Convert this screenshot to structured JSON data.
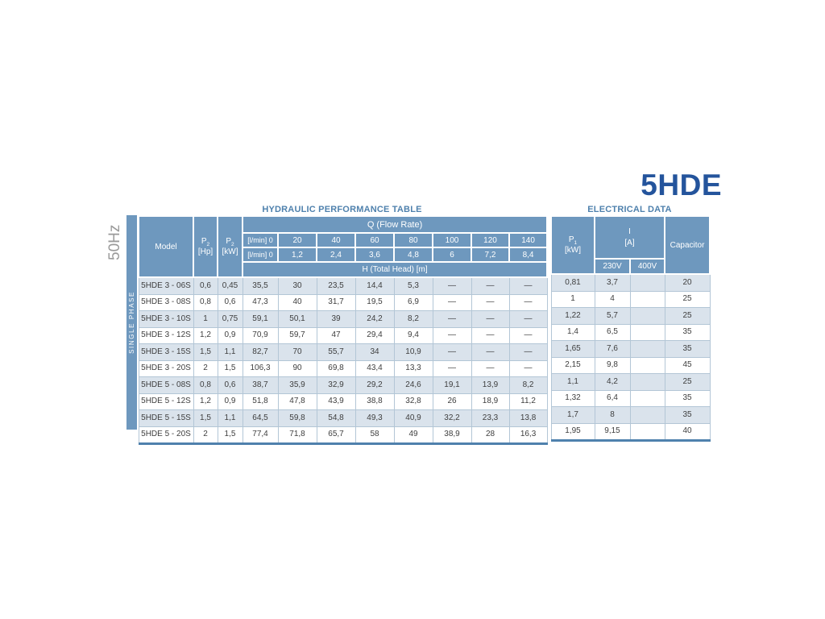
{
  "brand": "5HDE",
  "side": {
    "frequency": "50Hz",
    "phase": "SINGLE PHASE"
  },
  "hydraulic_table": {
    "title": "HYDRAULIC PERFORMANCE TABLE",
    "columns": {
      "model": "Model",
      "p2_hp": {
        "symbol": "P",
        "sub": "2",
        "unit": "[Hp]"
      },
      "p2_kw": {
        "symbol": "P",
        "sub": "2",
        "unit": "[kW]"
      },
      "q_header": "Q (Flow Rate)",
      "flow_lmin": [
        "[l/min] 0",
        "20",
        "40",
        "60",
        "80",
        "100",
        "120",
        "140"
      ],
      "flow_m3h": [
        "[l/min] 0",
        "1,2",
        "2,4",
        "3,6",
        "4,8",
        "6",
        "7,2",
        "8,4"
      ],
      "h_header": "H (Total Head) [m]"
    },
    "rows": [
      {
        "model": "5HDE 3 - 06S",
        "p2_hp": "0,6",
        "p2_kw": "0,45",
        "heads": [
          "35,5",
          "30",
          "23,5",
          "14,4",
          "5,3",
          "—",
          "—",
          "—"
        ]
      },
      {
        "model": "5HDE 3 - 08S",
        "p2_hp": "0,8",
        "p2_kw": "0,6",
        "heads": [
          "47,3",
          "40",
          "31,7",
          "19,5",
          "6,9",
          "—",
          "—",
          "—"
        ]
      },
      {
        "model": "5HDE 3 - 10S",
        "p2_hp": "1",
        "p2_kw": "0,75",
        "heads": [
          "59,1",
          "50,1",
          "39",
          "24,2",
          "8,2",
          "—",
          "—",
          "—"
        ]
      },
      {
        "model": "5HDE 3 - 12S",
        "p2_hp": "1,2",
        "p2_kw": "0,9",
        "heads": [
          "70,9",
          "59,7",
          "47",
          "29,4",
          "9,4",
          "—",
          "—",
          "—"
        ]
      },
      {
        "model": "5HDE 3 - 15S",
        "p2_hp": "1,5",
        "p2_kw": "1,1",
        "heads": [
          "82,7",
          "70",
          "55,7",
          "34",
          "10,9",
          "—",
          "—",
          "—"
        ]
      },
      {
        "model": "5HDE 3 - 20S",
        "p2_hp": "2",
        "p2_kw": "1,5",
        "heads": [
          "106,3",
          "90",
          "69,8",
          "43,4",
          "13,3",
          "—",
          "—",
          "—"
        ]
      },
      {
        "model": "5HDE 5 - 08S",
        "p2_hp": "0,8",
        "p2_kw": "0,6",
        "heads": [
          "38,7",
          "35,9",
          "32,9",
          "29,2",
          "24,6",
          "19,1",
          "13,9",
          "8,2"
        ]
      },
      {
        "model": "5HDE 5 - 12S",
        "p2_hp": "1,2",
        "p2_kw": "0,9",
        "heads": [
          "51,8",
          "47,8",
          "43,9",
          "38,8",
          "32,8",
          "26",
          "18,9",
          "11,2"
        ]
      },
      {
        "model": "5HDE 5 - 15S",
        "p2_hp": "1,5",
        "p2_kw": "1,1",
        "heads": [
          "64,5",
          "59,8",
          "54,8",
          "49,3",
          "40,9",
          "32,2",
          "23,3",
          "13,8"
        ]
      },
      {
        "model": "5HDE 5 - 20S",
        "p2_hp": "2",
        "p2_kw": "1,5",
        "heads": [
          "77,4",
          "71,8",
          "65,7",
          "58",
          "49",
          "38,9",
          "28",
          "16,3"
        ]
      }
    ]
  },
  "electrical_table": {
    "title": "ELECTRICAL DATA",
    "columns": {
      "p1": {
        "symbol": "P",
        "sub": "1",
        "unit": "[kW]"
      },
      "i_symbol": "I",
      "i_unit": "[A]",
      "v230": "230V",
      "v400": "400V",
      "capacitor": "Capacitor"
    },
    "rows": [
      {
        "p1": "0,81",
        "i_230": "3,7",
        "i_400": "",
        "capacitor": "20"
      },
      {
        "p1": "1",
        "i_230": "4",
        "i_400": "",
        "capacitor": "25"
      },
      {
        "p1": "1,22",
        "i_230": "5,7",
        "i_400": "",
        "capacitor": "25"
      },
      {
        "p1": "1,4",
        "i_230": "6,5",
        "i_400": "",
        "capacitor": "35"
      },
      {
        "p1": "1,65",
        "i_230": "7,6",
        "i_400": "",
        "capacitor": "35"
      },
      {
        "p1": "2,15",
        "i_230": "9,8",
        "i_400": "",
        "capacitor": "45"
      },
      {
        "p1": "1,1",
        "i_230": "4,2",
        "i_400": "",
        "capacitor": "25"
      },
      {
        "p1": "1,32",
        "i_230": "6,4",
        "i_400": "",
        "capacitor": "35"
      },
      {
        "p1": "1,7",
        "i_230": "8",
        "i_400": "",
        "capacitor": "35"
      },
      {
        "p1": "1,95",
        "i_230": "9,15",
        "i_400": "",
        "capacitor": "40"
      }
    ]
  },
  "colors": {
    "header_blue": "#6e98be",
    "row_alt_blue": "#dae3ec",
    "brand_blue": "#24549c",
    "title_blue": "#4f81ad",
    "bottom_border_blue": "#4f81ad",
    "body_text": "#3e3e3e",
    "frequency_gray": "#9a9a9a"
  }
}
